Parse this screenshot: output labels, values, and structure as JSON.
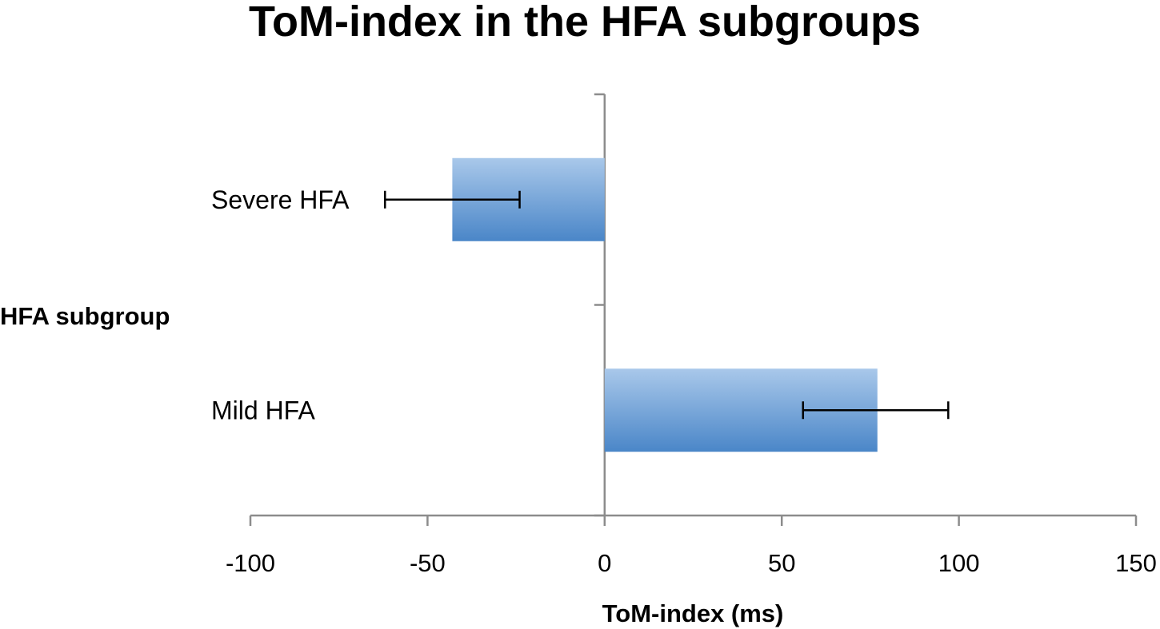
{
  "chart_data": {
    "type": "bar",
    "orientation": "horizontal",
    "title": "ToM-index in the HFA subgroups",
    "xlabel": "ToM-index (ms)",
    "ylabel": "HFA subgroup",
    "xlim": [
      -100,
      150
    ],
    "xticks": [
      "-100",
      "-50",
      "0",
      "50",
      "100",
      "150"
    ],
    "xtick_values": [
      -100,
      -50,
      0,
      50,
      100,
      150
    ],
    "categories": [
      "Severe HFA",
      "Mild HFA"
    ],
    "values": [
      -43,
      77
    ],
    "error_low": [
      -62,
      56
    ],
    "error_high": [
      -24,
      97
    ],
    "grid": false,
    "legend": "none",
    "bar_color_light": "#a9c8ea",
    "bar_color_dark": "#4a86c8",
    "axis_color": "#8c8c8c"
  }
}
